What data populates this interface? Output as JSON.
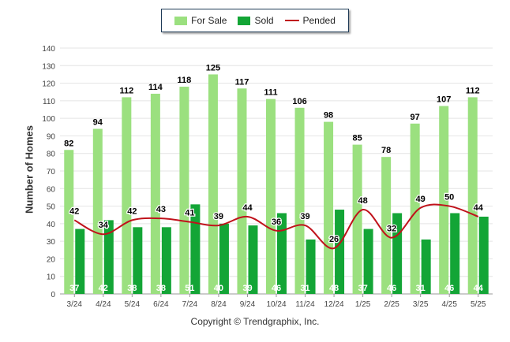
{
  "chart_data": {
    "type": "bar",
    "ylabel": "Number of Homes",
    "xlabel": "",
    "ylim": [
      0,
      140
    ],
    "yticks": [
      0,
      10,
      20,
      30,
      40,
      50,
      60,
      70,
      80,
      90,
      100,
      110,
      120,
      130,
      140
    ],
    "categories": [
      "3/24",
      "4/24",
      "5/24",
      "6/24",
      "7/24",
      "8/24",
      "9/24",
      "10/24",
      "11/24",
      "12/24",
      "1/25",
      "2/25",
      "3/25",
      "4/25",
      "5/25"
    ],
    "series": [
      {
        "name": "For Sale",
        "kind": "bar",
        "color": "#9be07f",
        "values": [
          82,
          94,
          112,
          114,
          118,
          125,
          117,
          111,
          106,
          98,
          85,
          78,
          97,
          107,
          112
        ]
      },
      {
        "name": "Sold",
        "kind": "bar",
        "color": "#13a536",
        "values": [
          37,
          42,
          38,
          38,
          51,
          40,
          39,
          46,
          31,
          48,
          37,
          46,
          31,
          46,
          44
        ]
      },
      {
        "name": "Pended",
        "kind": "line",
        "color": "#c0121b",
        "values": [
          42,
          34,
          42,
          43,
          41,
          39,
          44,
          36,
          39,
          26,
          48,
          32,
          49,
          50,
          44
        ]
      }
    ],
    "legend_position": "top-center",
    "grid": true
  },
  "copyright": "Copyright © Trendgraphix, Inc."
}
